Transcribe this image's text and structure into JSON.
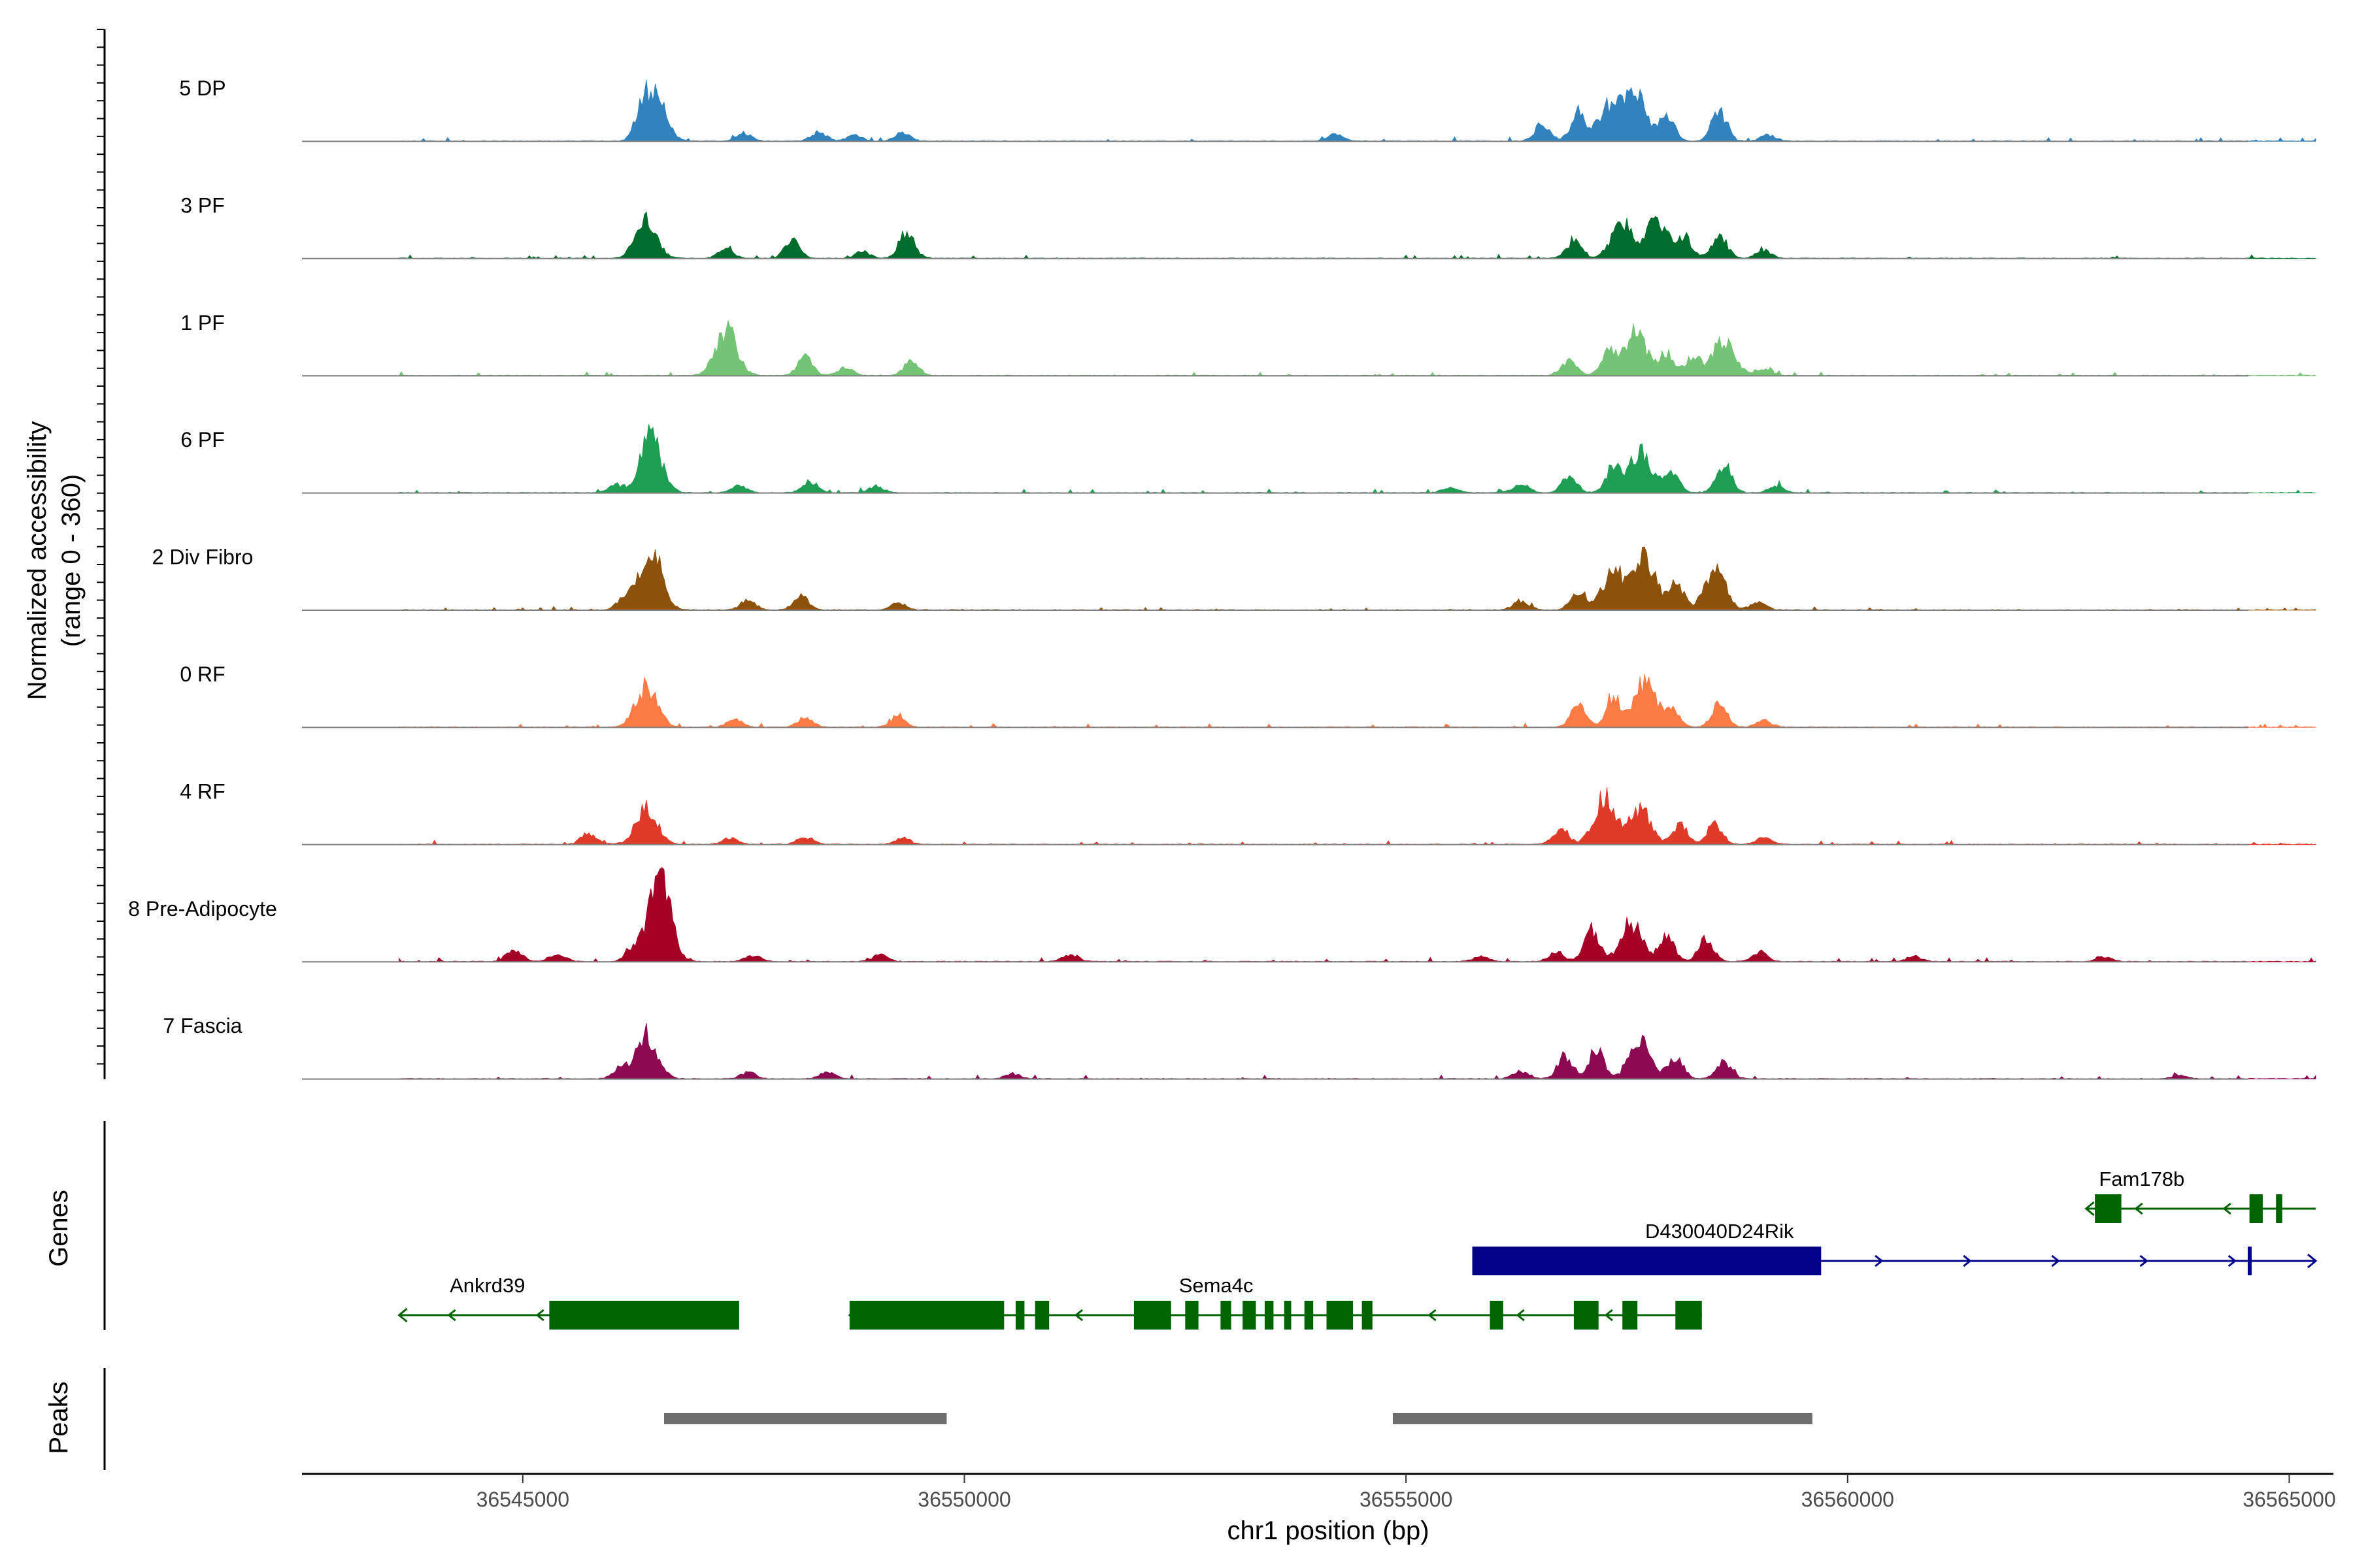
{
  "chart_data": {
    "type": "area",
    "ylabel": "Normalized accessibility",
    "ylabel_range": "(range 0 - 360)",
    "xlabel": "chr1 position (bp)",
    "genes_label": "Genes",
    "peaks_label": "Peaks",
    "xlim": [
      36542500,
      36565500
    ],
    "x_ticks": [
      {
        "value": 36545000,
        "label": "36545000"
      },
      {
        "value": 36550000,
        "label": "36550000"
      },
      {
        "value": 36555000,
        "label": "36555000"
      },
      {
        "value": 36560000,
        "label": "36560000"
      },
      {
        "value": 36565000,
        "label": "36565000"
      }
    ],
    "tracks": [
      {
        "name": "5 DP",
        "color": "#3182bd",
        "peaks": [
          [
            36546500,
            0.68
          ],
          [
            36546350,
            0.33
          ],
          [
            36547500,
            0.12
          ],
          [
            36548350,
            0.14
          ],
          [
            36548750,
            0.1
          ],
          [
            36549300,
            0.13
          ],
          [
            36554200,
            0.13
          ],
          [
            36556550,
            0.27
          ],
          [
            36556950,
            0.45
          ],
          [
            36557300,
            0.55
          ],
          [
            36557600,
            0.73
          ],
          [
            36557950,
            0.4
          ],
          [
            36558550,
            0.45
          ],
          [
            36559100,
            0.1
          ]
        ]
      },
      {
        "name": "3 PF",
        "color": "#006d2c",
        "peaks": [
          [
            36546400,
            0.58
          ],
          [
            36547300,
            0.15
          ],
          [
            36548050,
            0.28
          ],
          [
            36548850,
            0.1
          ],
          [
            36549350,
            0.42
          ],
          [
            36556900,
            0.25
          ],
          [
            36557450,
            0.55
          ],
          [
            36557850,
            0.6
          ],
          [
            36558150,
            0.33
          ],
          [
            36558550,
            0.35
          ],
          [
            36559050,
            0.12
          ]
        ]
      },
      {
        "name": "1 PF",
        "color": "#74c476",
        "peaks": [
          [
            36547300,
            0.72
          ],
          [
            36548200,
            0.28
          ],
          [
            36548650,
            0.12
          ],
          [
            36549400,
            0.22
          ],
          [
            36556850,
            0.22
          ],
          [
            36557300,
            0.42
          ],
          [
            36557600,
            0.65
          ],
          [
            36557950,
            0.35
          ],
          [
            36558250,
            0.3
          ],
          [
            36558600,
            0.55
          ],
          [
            36559050,
            0.12
          ]
        ]
      },
      {
        "name": "6 PF",
        "color": "#1f9d55",
        "peaks": [
          [
            36546450,
            0.85
          ],
          [
            36546050,
            0.12
          ],
          [
            36547450,
            0.1
          ],
          [
            36548250,
            0.18
          ],
          [
            36549000,
            0.1
          ],
          [
            36555500,
            0.08
          ],
          [
            36556300,
            0.15
          ],
          [
            36556850,
            0.25
          ],
          [
            36557350,
            0.4
          ],
          [
            36557650,
            0.62
          ],
          [
            36558000,
            0.35
          ],
          [
            36558600,
            0.45
          ],
          [
            36559200,
            0.12
          ]
        ]
      },
      {
        "name": "2 Div Fibro",
        "color": "#8c510a",
        "peaks": [
          [
            36546450,
            0.95
          ],
          [
            36546150,
            0.2
          ],
          [
            36547550,
            0.15
          ],
          [
            36548150,
            0.22
          ],
          [
            36549250,
            0.1
          ],
          [
            36556300,
            0.15
          ],
          [
            36556950,
            0.3
          ],
          [
            36557350,
            0.6
          ],
          [
            36557700,
            0.8
          ],
          [
            36558050,
            0.45
          ],
          [
            36558500,
            0.6
          ],
          [
            36559000,
            0.12
          ]
        ]
      },
      {
        "name": "0 RF",
        "color": "#fc7b45",
        "peaks": [
          [
            36546400,
            0.65
          ],
          [
            36547400,
            0.12
          ],
          [
            36548200,
            0.16
          ],
          [
            36549250,
            0.15
          ],
          [
            36556950,
            0.35
          ],
          [
            36557350,
            0.45
          ],
          [
            36557700,
            0.7
          ],
          [
            36558000,
            0.32
          ],
          [
            36558550,
            0.35
          ],
          [
            36559050,
            0.1
          ]
        ]
      },
      {
        "name": "4 RF",
        "color": "#e03a2a",
        "peaks": [
          [
            36546400,
            0.55
          ],
          [
            36545750,
            0.18
          ],
          [
            36547350,
            0.1
          ],
          [
            36548200,
            0.12
          ],
          [
            36549300,
            0.1
          ],
          [
            36556750,
            0.25
          ],
          [
            36557250,
            0.75
          ],
          [
            36557650,
            0.55
          ],
          [
            36558100,
            0.3
          ],
          [
            36558500,
            0.3
          ],
          [
            36559050,
            0.1
          ]
        ]
      },
      {
        "name": "8 Pre-Adipocyte",
        "color": "#a50026",
        "peaks": [
          [
            36546550,
            1.3
          ],
          [
            36546250,
            0.2
          ],
          [
            36544900,
            0.2
          ],
          [
            36545400,
            0.12
          ],
          [
            36547600,
            0.1
          ],
          [
            36549050,
            0.1
          ],
          [
            36551200,
            0.12
          ],
          [
            36555850,
            0.08
          ],
          [
            36556700,
            0.15
          ],
          [
            36557100,
            0.5
          ],
          [
            36557550,
            0.6
          ],
          [
            36557950,
            0.4
          ],
          [
            36558400,
            0.35
          ],
          [
            36559000,
            0.15
          ],
          [
            36560750,
            0.08
          ],
          [
            36562900,
            0.08
          ]
        ]
      },
      {
        "name": "7 Fascia",
        "color": "#8c0a52",
        "peaks": [
          [
            36546400,
            0.68
          ],
          [
            36546100,
            0.15
          ],
          [
            36547550,
            0.1
          ],
          [
            36548450,
            0.1
          ],
          [
            36550550,
            0.08
          ],
          [
            36556300,
            0.12
          ],
          [
            36556800,
            0.35
          ],
          [
            36557150,
            0.45
          ],
          [
            36557650,
            0.55
          ],
          [
            36558050,
            0.35
          ],
          [
            36558600,
            0.25
          ],
          [
            36563750,
            0.06
          ]
        ]
      }
    ],
    "genes": [
      {
        "name": "Ankrd39",
        "strand": "-",
        "color": "#006400",
        "start": 36543600,
        "end": 36547450,
        "exons": [
          [
            36545300,
            36547450
          ]
        ],
        "label_pos": 36544600
      },
      {
        "name": "Sema4c",
        "strand": "-",
        "color": "#006400",
        "start": 36548700,
        "end": 36558350,
        "exons": [
          [
            36548700,
            36550450
          ],
          [
            36550580,
            36550680
          ],
          [
            36550800,
            36550960
          ],
          [
            36551920,
            36552340
          ],
          [
            36552500,
            36552650
          ],
          [
            36552900,
            36553020
          ],
          [
            36553150,
            36553300
          ],
          [
            36553400,
            36553500
          ],
          [
            36553620,
            36553700
          ],
          [
            36553850,
            36553950
          ],
          [
            36554100,
            36554400
          ],
          [
            36554500,
            36554620
          ],
          [
            36555950,
            36556100
          ],
          [
            36556900,
            36557180
          ],
          [
            36557450,
            36557620
          ],
          [
            36558050,
            36558350
          ]
        ],
        "label_pos": 36552850
      },
      {
        "name": "D430040D24Rik",
        "strand": "+",
        "color": "#00008b",
        "start": 36555750,
        "end": 36565300,
        "exons": [
          [
            36555750,
            36559700
          ],
          [
            36564530,
            36564560
          ]
        ],
        "label_pos": 36558550
      },
      {
        "name": "Fam178b",
        "strand": "-",
        "color": "#006400",
        "start": 36562700,
        "end": 36565300,
        "exons": [
          [
            36562800,
            36563100
          ],
          [
            36564550,
            36564700
          ],
          [
            36564850,
            36564920
          ]
        ],
        "label_pos": 36563330
      }
    ],
    "peaks": [
      {
        "start": 36546600,
        "end": 36549800
      },
      {
        "start": 36554850,
        "end": 36559600
      }
    ]
  }
}
